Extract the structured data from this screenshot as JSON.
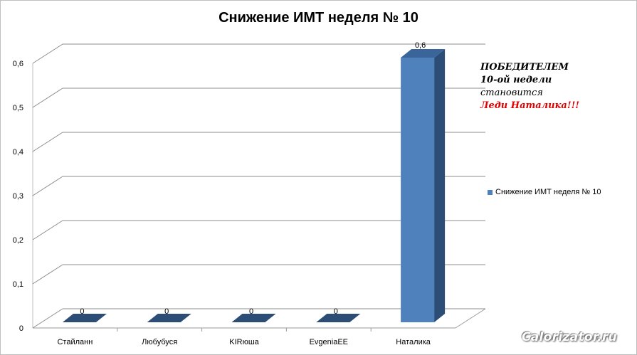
{
  "chart_data": {
    "type": "bar",
    "title": "Снижение ИМТ неделя № 10",
    "categories": [
      "Стайланн",
      "Любубуся",
      "KIRюша",
      "EvgeniaEE",
      "Наталика"
    ],
    "series": [
      {
        "name": "Снижение ИМТ неделя № 10",
        "values": [
          0,
          0,
          0,
          0,
          0.6
        ]
      }
    ],
    "data_labels": [
      "0",
      "0",
      "0",
      "0",
      "0,6"
    ],
    "y_ticks": [
      "0",
      "0,1",
      "0,2",
      "0,3",
      "0,4",
      "0,5",
      "0,6"
    ],
    "ylim": [
      0,
      0.6
    ],
    "grid": true,
    "legend_position": "right",
    "bar_color": "#4f81bd"
  },
  "annotation": {
    "line1": "ПОБЕДИТЕЛЕМ",
    "line2": "10-ой недели",
    "line3": "становится",
    "line4": "Леди Наталика!!!"
  },
  "watermark": "Calorizator.ru"
}
